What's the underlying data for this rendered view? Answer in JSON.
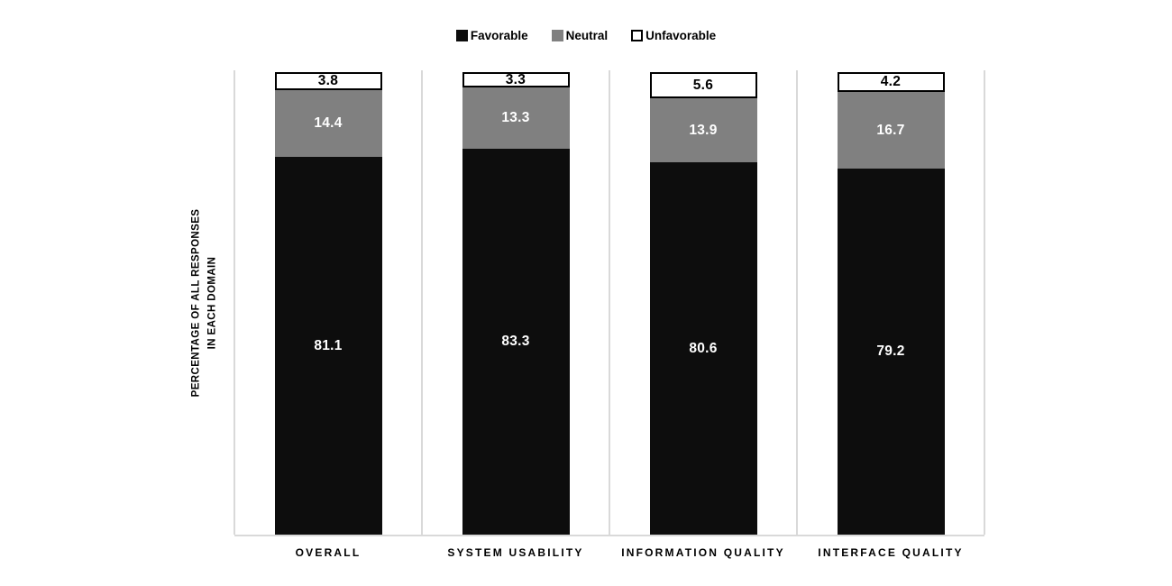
{
  "chart_data": {
    "type": "bar",
    "variant": "100-percent-stacked-column",
    "categories": [
      "OVERALL",
      "SYSTEM USABILITY",
      "INFORMATION QUALITY",
      "INTERFACE QUALITY"
    ],
    "series": [
      {
        "name": "Favorable",
        "color": "#0d0d0d",
        "label_color": "#ffffff",
        "values": [
          81.1,
          83.3,
          80.6,
          79.2
        ]
      },
      {
        "name": "Neutral",
        "color": "#808080",
        "label_color": "#ffffff",
        "values": [
          14.4,
          13.3,
          13.9,
          16.7
        ]
      },
      {
        "name": "Unfavorable",
        "color": "#ffffff",
        "border_color": "#000000",
        "label_color": "#000000",
        "values": [
          3.8,
          3.3,
          5.6,
          4.2
        ]
      }
    ],
    "title": "",
    "xlabel": "",
    "ylabel_lines": [
      "PERCENTAGE OF ALL RESPONSES",
      "IN EACH DOMAIN"
    ],
    "ylim": [
      0,
      100
    ],
    "data_labels": "center",
    "legend_position": "top",
    "gridlines": "vertical category boundaries",
    "axis_line_color": "#d9d9d9",
    "background_color": "#ffffff"
  }
}
